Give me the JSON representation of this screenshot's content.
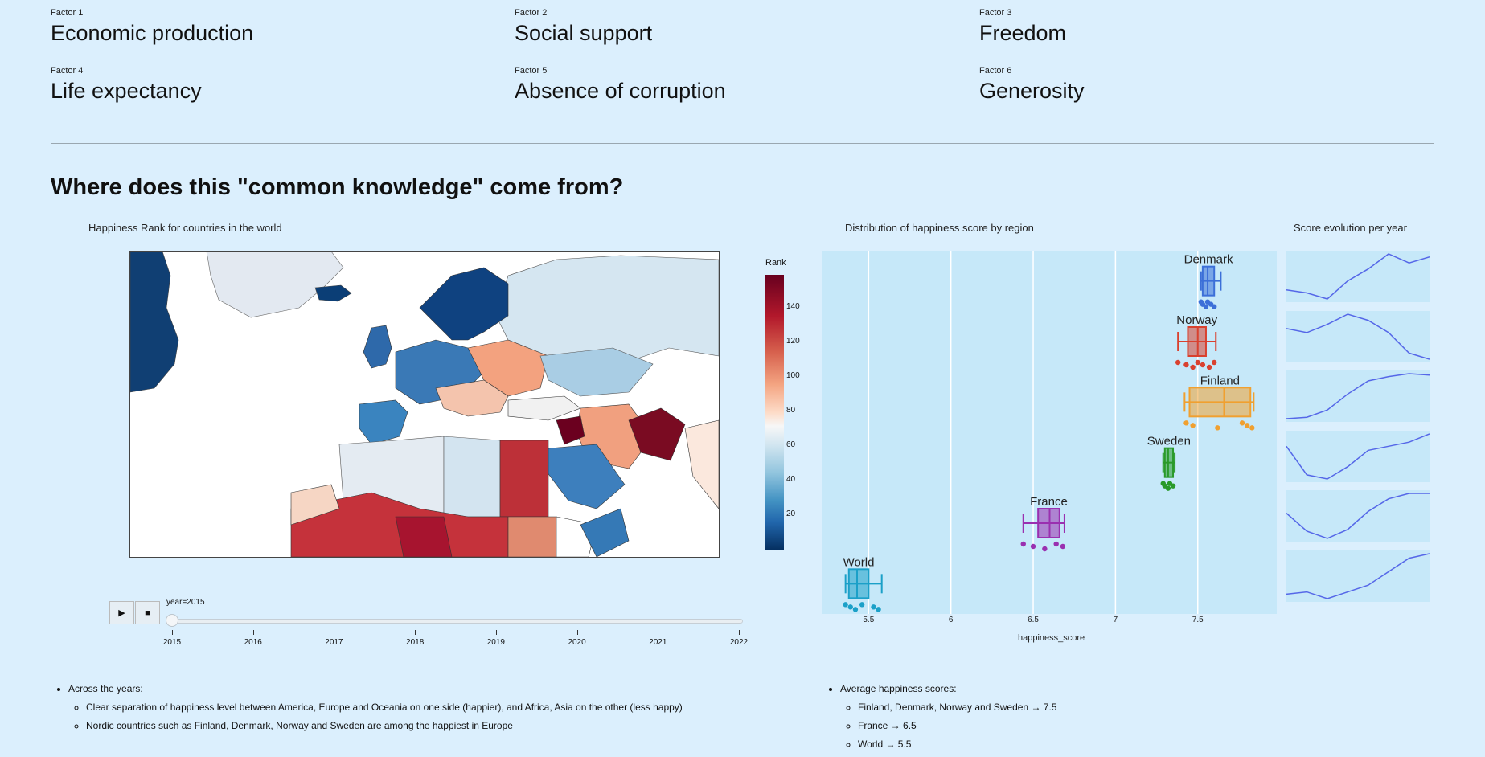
{
  "factors": [
    {
      "label": "Factor 1",
      "name": "Economic production"
    },
    {
      "label": "Factor 2",
      "name": "Social support"
    },
    {
      "label": "Factor 3",
      "name": "Freedom"
    },
    {
      "label": "Factor 4",
      "name": "Life expectancy"
    },
    {
      "label": "Factor 5",
      "name": "Absence of corruption"
    },
    {
      "label": "Factor 6",
      "name": "Generosity"
    }
  ],
  "heading": "Where does this \"common knowledge\" come from?",
  "map": {
    "title": "Happiness Rank for countries in the world",
    "colorbar_label": "Rank",
    "colorbar_ticks": [
      "140",
      "120",
      "100",
      "80",
      "60",
      "40",
      "20"
    ],
    "slider_label": "year=2015",
    "years": [
      "2015",
      "2016",
      "2017",
      "2018",
      "2019",
      "2020",
      "2021",
      "2022"
    ],
    "play_icon": "play-icon",
    "stop_icon": "stop-icon"
  },
  "box": {
    "title": "Distribution of happiness score by region",
    "xlabel": "happiness_score",
    "ticks": [
      "5.5",
      "6",
      "6.5",
      "7",
      "7.5"
    ]
  },
  "spark_title": "Score evolution per year",
  "chart_data": [
    {
      "type": "box",
      "title": "Distribution of happiness score by region",
      "xlabel": "happiness_score",
      "xlim": [
        5.22,
        7.98
      ],
      "series": [
        {
          "name": "Denmark",
          "color": "#3c6fd8",
          "min": 7.52,
          "q1": 7.53,
          "median": 7.56,
          "q3": 7.6,
          "max": 7.64,
          "points": [
            7.52,
            7.53,
            7.55,
            7.56,
            7.58,
            7.6
          ]
        },
        {
          "name": "Norway",
          "color": "#d9412f",
          "min": 7.38,
          "q1": 7.44,
          "median": 7.5,
          "q3": 7.55,
          "max": 7.61,
          "points": [
            7.38,
            7.43,
            7.47,
            7.5,
            7.53,
            7.57,
            7.6
          ]
        },
        {
          "name": "Finland",
          "color": "#f0a030",
          "min": 7.42,
          "q1": 7.45,
          "median": 7.66,
          "q3": 7.82,
          "max": 7.84,
          "points": [
            7.43,
            7.47,
            7.62,
            7.77,
            7.8,
            7.83
          ]
        },
        {
          "name": "Sweden",
          "color": "#2a9a2a",
          "min": 7.29,
          "q1": 7.3,
          "median": 7.32,
          "q3": 7.35,
          "max": 7.36,
          "points": [
            7.29,
            7.3,
            7.32,
            7.33,
            7.35
          ]
        },
        {
          "name": "France",
          "color": "#9a30b0",
          "min": 6.44,
          "q1": 6.53,
          "median": 6.6,
          "q3": 6.66,
          "max": 6.69,
          "points": [
            6.44,
            6.5,
            6.57,
            6.64,
            6.68
          ]
        },
        {
          "name": "World",
          "color": "#1ba0c8",
          "min": 5.36,
          "q1": 5.38,
          "median": 5.43,
          "q3": 5.5,
          "max": 5.58,
          "points": [
            5.36,
            5.39,
            5.42,
            5.46,
            5.53,
            5.56
          ]
        }
      ]
    },
    {
      "type": "line",
      "title": "Score evolution per year",
      "series": [
        {
          "name": "Denmark",
          "values": [
            7.53,
            7.52,
            7.5,
            7.56,
            7.6,
            7.65,
            7.62,
            7.64
          ]
        },
        {
          "name": "Norway",
          "values": [
            7.52,
            7.5,
            7.54,
            7.59,
            7.56,
            7.5,
            7.4,
            7.37
          ]
        },
        {
          "name": "Finland",
          "values": [
            7.41,
            7.42,
            7.47,
            7.58,
            7.67,
            7.7,
            7.72,
            7.71
          ]
        },
        {
          "name": "Sweden",
          "values": [
            7.36,
            7.29,
            7.28,
            7.31,
            7.35,
            7.36,
            7.37,
            7.39
          ]
        },
        {
          "name": "France",
          "values": [
            6.58,
            6.48,
            6.44,
            6.49,
            6.59,
            6.66,
            6.69,
            6.69
          ]
        },
        {
          "name": "World",
          "values": [
            5.37,
            5.38,
            5.35,
            5.38,
            5.41,
            5.47,
            5.53,
            5.55
          ]
        }
      ]
    }
  ],
  "notes_left": {
    "header": "Across the years:",
    "items": [
      "Clear separation of happiness level between America, Europe and Oceania on one side (happier), and Africa, Asia on the other (less happy)",
      "Nordic countries such as Finland, Denmark, Norway and Sweden are among the happiest in Europe"
    ]
  },
  "notes_right": {
    "header": "Average happiness scores:",
    "items": [
      "Finland, Denmark, Norway and Sweden → 7.5",
      "France → 6.5",
      "World → 5.5"
    ]
  },
  "colors": {
    "background": "#dbeffd",
    "plot_bg": "#c6e8f9",
    "spark_line": "#5567e8"
  }
}
